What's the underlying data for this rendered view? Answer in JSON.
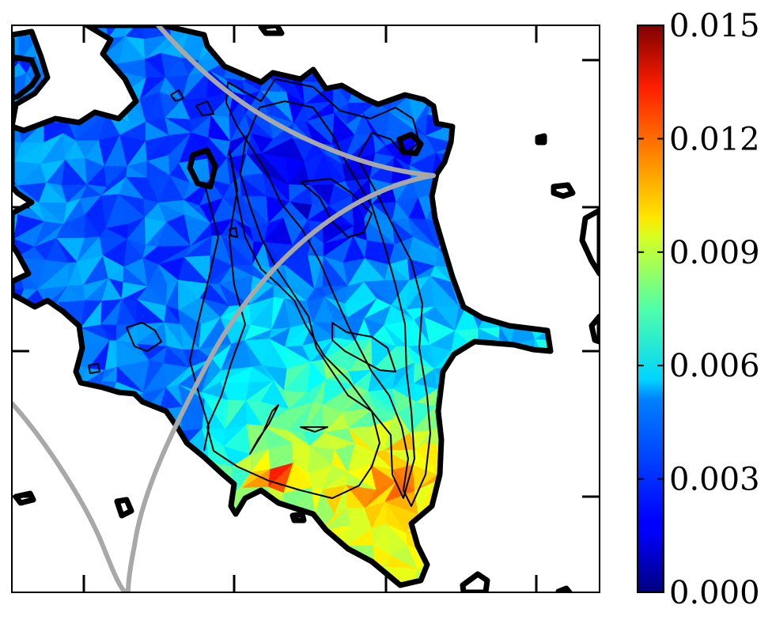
{
  "chart_data": {
    "type": "heatmap",
    "title": "",
    "xlabel": "",
    "ylabel": "",
    "colormap": "jet",
    "colorbar": {
      "range": [
        0.0,
        0.015
      ],
      "tick_values": [
        0.0,
        0.003,
        0.006,
        0.009,
        0.012,
        0.015
      ],
      "tick_labels": [
        "0.000",
        "0.003",
        "0.006",
        "0.009",
        "0.012",
        "0.015"
      ],
      "position": "right"
    },
    "axes": {
      "tick_labels_shown": false,
      "grid": false
    },
    "overlays": {
      "outline_contour_color": "#000000",
      "inner_contour_color": "#000000",
      "curve_color": "#a8a8a8"
    },
    "regions": [
      {
        "region": "upper-left lobe",
        "approx_value": 0.0035
      },
      {
        "region": "upper-center channel",
        "approx_value": 0.002
      },
      {
        "region": "center-right",
        "approx_value": 0.0065
      },
      {
        "region": "lower-center",
        "approx_value": 0.0085
      },
      {
        "region": "lower-right",
        "approx_value": 0.0105
      },
      {
        "region": "lower-left hot spot",
        "approx_value": 0.0125
      }
    ]
  }
}
